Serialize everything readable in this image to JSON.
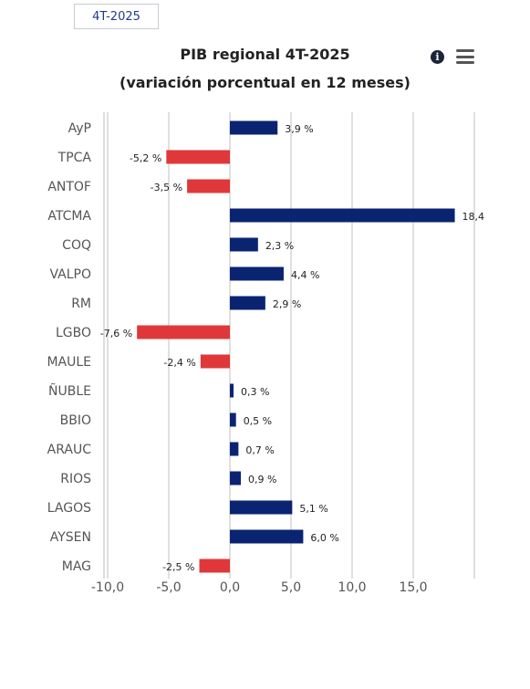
{
  "period_button": "4T-2025",
  "info_icon_glyph": "i",
  "icons": [
    "info-icon",
    "hamburger-menu-icon"
  ],
  "chart_data": {
    "type": "bar",
    "orientation": "horizontal",
    "title": "PIB regional 4T-2025",
    "subtitle": "(variación porcentual en 12 meses)",
    "categories": [
      "AyP",
      "TPCA",
      "ANTOF",
      "ATCMA",
      "COQ",
      "VALPO",
      "RM",
      "LGBO",
      "MAULE",
      "ÑUBLE",
      "BBIO",
      "ARAUC",
      "RIOS",
      "LAGOS",
      "AYSEN",
      "MAG"
    ],
    "values": [
      3.9,
      -5.2,
      -3.5,
      18.4,
      2.3,
      4.4,
      2.9,
      -7.6,
      -2.4,
      0.3,
      0.5,
      0.7,
      0.9,
      5.1,
      6.0,
      -2.5
    ],
    "data_labels": [
      "3,9 %",
      "-5,2 %",
      "-3,5 %",
      "18,4",
      "2,3 %",
      "4,4 %",
      "2,9 %",
      "-7,6 %",
      "-2,4 %",
      "0,3 %",
      "0,5 %",
      "0,7 %",
      "0,9 %",
      "5,1 %",
      "6,0 %",
      "-2,5 %"
    ],
    "xlim": [
      -10,
      20
    ],
    "x_ticks": [
      -10,
      -5,
      0,
      5,
      10,
      15
    ],
    "x_tick_labels": [
      "-10,0",
      "-5,0",
      "0,0",
      "5,0",
      "10,0",
      "15,0"
    ],
    "grid": true,
    "colors": {
      "positive": "#0b2472",
      "negative": "#e0383a",
      "grid": "#e0e0e0"
    }
  }
}
